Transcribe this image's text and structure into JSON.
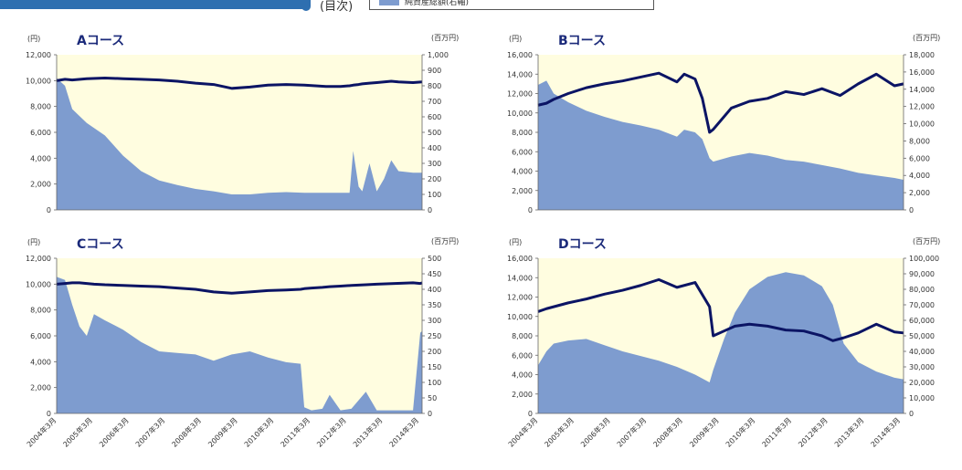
{
  "header": {
    "mokuji_label": "(目次)",
    "legend_label": "純資産総額(右軸)",
    "colors": {
      "band": "#2e6fb0",
      "area": "#7e9ccf",
      "line": "#0b1464",
      "bg": "#fffde0"
    }
  },
  "x_tick_labels": [
    "2004年3月",
    "2005年3月",
    "2006年3月",
    "2007年3月",
    "2008年3月",
    "2009年3月",
    "2010年3月",
    "2011年3月",
    "2012年3月",
    "2013年3月",
    "2014年3月"
  ],
  "chart_data": [
    {
      "id": "A",
      "type": "line",
      "title": "Aコース",
      "left_unit": "(円)",
      "right_unit": "(百万円)",
      "left_ticks": [
        "0",
        "2,000",
        "4,000",
        "6,000",
        "8,000",
        "10,000",
        "12,000"
      ],
      "right_ticks": [
        "0",
        "100",
        "200",
        "300",
        "400",
        "500",
        "600",
        "700",
        "800",
        "900",
        "1,000"
      ],
      "ylim_left": [
        0,
        12000
      ],
      "ylim_right": [
        0,
        1000
      ],
      "x": [
        2004.17,
        2004.4,
        2004.6,
        2005,
        2005.5,
        2006,
        2006.5,
        2007,
        2007.5,
        2008,
        2008.5,
        2009,
        2009.5,
        2010,
        2010.5,
        2011,
        2011.3,
        2011.6,
        2012,
        2012.25,
        2012.35,
        2012.5,
        2012.6,
        2012.8,
        2013,
        2013.2,
        2013.4,
        2013.6,
        2014,
        2014.25
      ],
      "series": [
        {
          "axis": "right",
          "type": "area",
          "values": [
            850,
            800,
            650,
            560,
            480,
            350,
            250,
            190,
            160,
            135,
            120,
            100,
            100,
            110,
            115,
            110,
            110,
            110,
            110,
            110,
            380,
            150,
            120,
            300,
            120,
            200,
            320,
            250,
            240,
            240
          ]
        },
        {
          "axis": "left",
          "type": "line",
          "values": [
            10000,
            10100,
            10050,
            10150,
            10200,
            10150,
            10100,
            10050,
            9950,
            9800,
            9700,
            9400,
            9500,
            9650,
            9700,
            9650,
            9600,
            9550,
            9550,
            9600,
            9650,
            9700,
            9750,
            9800,
            9850,
            9900,
            9950,
            9900,
            9850,
            9900
          ]
        }
      ]
    },
    {
      "id": "B",
      "type": "line",
      "title": "Bコース",
      "left_unit": "(円)",
      "right_unit": "(百万円)",
      "left_ticks": [
        "0",
        "2,000",
        "4,000",
        "6,000",
        "8,000",
        "10,000",
        "12,000",
        "14,000",
        "16,000"
      ],
      "right_ticks": [
        "0",
        "2,000",
        "4,000",
        "6,000",
        "8,000",
        "10,000",
        "12,000",
        "14,000",
        "16,000",
        "18,000"
      ],
      "ylim_left": [
        0,
        16000
      ],
      "ylim_right": [
        0,
        18000
      ],
      "x": [
        2004.17,
        2004.4,
        2004.6,
        2005,
        2005.5,
        2006,
        2006.5,
        2007,
        2007.5,
        2008,
        2008.2,
        2008.5,
        2008.7,
        2008.9,
        2009,
        2009.5,
        2010,
        2010.5,
        2011,
        2011.5,
        2012,
        2012.5,
        2013,
        2013.5,
        2014,
        2014.25
      ],
      "series": [
        {
          "axis": "right",
          "type": "area",
          "values": [
            14500,
            15000,
            13500,
            12500,
            11500,
            10800,
            10200,
            9800,
            9300,
            8500,
            9300,
            9000,
            8200,
            6000,
            5600,
            6200,
            6600,
            6300,
            5800,
            5600,
            5200,
            4800,
            4300,
            4000,
            3700,
            3500
          ]
        },
        {
          "axis": "left",
          "type": "line",
          "values": [
            10800,
            11000,
            11400,
            12000,
            12600,
            13000,
            13300,
            13700,
            14100,
            13200,
            14000,
            13500,
            11500,
            8000,
            8300,
            10500,
            11200,
            11500,
            12200,
            11900,
            12500,
            11800,
            13000,
            14000,
            12800,
            13000
          ]
        }
      ]
    },
    {
      "id": "C",
      "type": "line",
      "title": "Cコース",
      "left_unit": "(円)",
      "right_unit": "(百万円)",
      "left_ticks": [
        "0",
        "2,000",
        "4,000",
        "6,000",
        "8,000",
        "10,000",
        "12,000"
      ],
      "right_ticks": [
        "0",
        "50",
        "100",
        "150",
        "200",
        "250",
        "300",
        "350",
        "400",
        "450",
        "500"
      ],
      "ylim_left": [
        0,
        12000
      ],
      "ylim_right": [
        0,
        500
      ],
      "x": [
        2004.17,
        2004.4,
        2004.6,
        2004.8,
        2005,
        2005.2,
        2005.5,
        2006,
        2006.5,
        2007,
        2007.5,
        2008,
        2008.5,
        2009,
        2009.5,
        2010,
        2010.5,
        2010.9,
        2011,
        2011.2,
        2011.5,
        2011.7,
        2012,
        2012.3,
        2012.7,
        2013,
        2013.5,
        2014,
        2014.2,
        2014.25
      ],
      "series": [
        {
          "axis": "right",
          "type": "area",
          "values": [
            440,
            430,
            350,
            280,
            250,
            320,
            300,
            270,
            230,
            200,
            195,
            190,
            170,
            190,
            200,
            180,
            165,
            160,
            20,
            10,
            15,
            60,
            10,
            15,
            70,
            10,
            10,
            10,
            260,
            265
          ]
        },
        {
          "axis": "left",
          "type": "line",
          "values": [
            10000,
            10050,
            10100,
            10100,
            10050,
            10000,
            9950,
            9900,
            9850,
            9800,
            9700,
            9600,
            9400,
            9300,
            9400,
            9500,
            9550,
            9600,
            9650,
            9700,
            9750,
            9800,
            9850,
            9900,
            9950,
            10000,
            10050,
            10100,
            10050,
            10100
          ]
        }
      ]
    },
    {
      "id": "D",
      "type": "line",
      "title": "Dコース",
      "left_unit": "(円)",
      "right_unit": "(百万円)",
      "left_ticks": [
        "0",
        "2,000",
        "4,000",
        "6,000",
        "8,000",
        "10,000",
        "12,000",
        "14,000",
        "16,000"
      ],
      "right_ticks": [
        "0",
        "10,000",
        "20,000",
        "30,000",
        "40,000",
        "50,000",
        "60,000",
        "70,000",
        "80,000",
        "90,000",
        "100,000"
      ],
      "ylim_left": [
        0,
        16000
      ],
      "ylim_right": [
        0,
        100000
      ],
      "x": [
        2004.17,
        2004.4,
        2004.6,
        2005,
        2005.5,
        2006,
        2006.5,
        2007,
        2007.5,
        2008,
        2008.5,
        2008.9,
        2009,
        2009.3,
        2009.6,
        2010,
        2010.5,
        2011,
        2011.5,
        2012,
        2012.3,
        2012.6,
        2013,
        2013.5,
        2014,
        2014.25
      ],
      "series": [
        {
          "axis": "right",
          "type": "area",
          "values": [
            31000,
            40000,
            45000,
            47000,
            48000,
            44000,
            40000,
            37000,
            34000,
            30000,
            25000,
            20000,
            28000,
            48000,
            65000,
            80000,
            88000,
            91000,
            89000,
            82000,
            70000,
            45000,
            33000,
            27000,
            23000,
            22000
          ]
        },
        {
          "axis": "left",
          "type": "line",
          "values": [
            10500,
            10800,
            11000,
            11400,
            11800,
            12300,
            12700,
            13200,
            13800,
            13000,
            13500,
            11000,
            8000,
            8500,
            9000,
            9200,
            9000,
            8600,
            8500,
            8000,
            7500,
            7800,
            8300,
            9200,
            8400,
            8300
          ]
        }
      ]
    }
  ]
}
